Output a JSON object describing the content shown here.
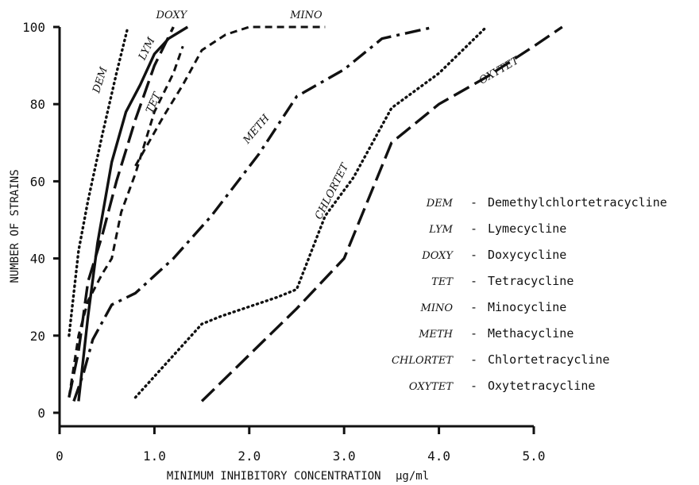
{
  "chart_data": {
    "type": "line",
    "xlabel": "MINIMUM INHIBITORY CONCENTRATION",
    "xlabel_unit": "µg/ml",
    "ylabel": "NUMBER OF STRAINS",
    "xlim": [
      0,
      5.0
    ],
    "ylim": [
      0,
      100
    ],
    "xticks": [
      "0",
      "1.0",
      "2.0",
      "3.0",
      "4.0",
      "5.0"
    ],
    "yticks": [
      "0",
      "20",
      "40",
      "60",
      "80",
      "100"
    ],
    "grid": false,
    "legend_position": "right",
    "series": [
      {
        "key": "dem",
        "name": "DEM",
        "dash": "dotted",
        "points": [
          [
            0.1,
            20
          ],
          [
            0.2,
            42
          ],
          [
            0.3,
            55
          ],
          [
            0.45,
            72
          ],
          [
            0.6,
            88
          ],
          [
            0.72,
            100
          ]
        ]
      },
      {
        "key": "lym",
        "name": "LYM",
        "dash": "solid",
        "points": [
          [
            0.2,
            3
          ],
          [
            0.3,
            25
          ],
          [
            0.4,
            44
          ],
          [
            0.55,
            65
          ],
          [
            0.7,
            78
          ],
          [
            0.85,
            85
          ],
          [
            1.0,
            93
          ],
          [
            1.15,
            97
          ],
          [
            1.35,
            100
          ]
        ]
      },
      {
        "key": "doxy",
        "name": "DOXY",
        "dash": "long-dash",
        "points": [
          [
            0.1,
            4
          ],
          [
            0.2,
            16
          ],
          [
            0.3,
            34
          ],
          [
            0.45,
            46
          ],
          [
            0.6,
            60
          ],
          [
            0.8,
            76
          ],
          [
            1.0,
            90
          ],
          [
            1.2,
            100
          ]
        ]
      },
      {
        "key": "tet",
        "name": "TET",
        "dash": "dash",
        "points": [
          [
            0.1,
            4
          ],
          [
            0.2,
            20
          ],
          [
            0.3,
            29
          ],
          [
            0.45,
            36
          ],
          [
            0.55,
            40
          ],
          [
            0.65,
            52
          ],
          [
            0.8,
            62
          ],
          [
            1.0,
            78
          ],
          [
            1.2,
            88
          ],
          [
            1.3,
            95
          ]
        ]
      },
      {
        "key": "mino",
        "name": "MINO",
        "dash": "dash",
        "points": [
          [
            0.8,
            64
          ],
          [
            1.1,
            77
          ],
          [
            1.3,
            85
          ],
          [
            1.5,
            94
          ],
          [
            1.75,
            98
          ],
          [
            2.0,
            100
          ],
          [
            2.8,
            100
          ]
        ]
      },
      {
        "key": "meth",
        "name": "METH",
        "dash": "dash-dot",
        "points": [
          [
            0.15,
            3
          ],
          [
            0.25,
            10
          ],
          [
            0.35,
            19
          ],
          [
            0.55,
            28
          ],
          [
            0.8,
            31
          ],
          [
            1.2,
            40
          ],
          [
            1.6,
            51
          ],
          [
            2.1,
            67
          ],
          [
            2.5,
            82
          ],
          [
            3.0,
            89
          ],
          [
            3.4,
            97
          ],
          [
            3.95,
            100
          ]
        ]
      },
      {
        "key": "chlortet",
        "name": "CHLORTET",
        "dash": "dotted",
        "points": [
          [
            0.8,
            4
          ],
          [
            1.5,
            23
          ],
          [
            1.7,
            25
          ],
          [
            2.3,
            30
          ],
          [
            2.5,
            32
          ],
          [
            2.8,
            51
          ],
          [
            3.1,
            61
          ],
          [
            3.3,
            70
          ],
          [
            3.5,
            79
          ],
          [
            4.0,
            88
          ],
          [
            4.5,
            100
          ]
        ]
      },
      {
        "key": "oxytet",
        "name": "OXYTET",
        "dash": "long-dash",
        "points": [
          [
            1.5,
            3
          ],
          [
            2.5,
            27
          ],
          [
            3.0,
            40
          ],
          [
            3.5,
            70
          ],
          [
            4.0,
            80
          ],
          [
            4.5,
            87
          ],
          [
            5.0,
            95
          ],
          [
            5.3,
            100
          ]
        ]
      }
    ],
    "legend": [
      {
        "abbr": "DEM",
        "text": "Demethylchlortetracycline"
      },
      {
        "abbr": "LYM",
        "text": "Lymecycline"
      },
      {
        "abbr": "DOXY",
        "text": "Doxycycline"
      },
      {
        "abbr": "TET",
        "text": "Tetracycline"
      },
      {
        "abbr": "MINO",
        "text": "Minocycline"
      },
      {
        "abbr": "METH",
        "text": "Methacycline"
      },
      {
        "abbr": "CHLORTET",
        "text": "Chlortetracycline"
      },
      {
        "abbr": "OXYTET",
        "text": "Oxytetracycline"
      }
    ],
    "legend_separator": "-"
  }
}
